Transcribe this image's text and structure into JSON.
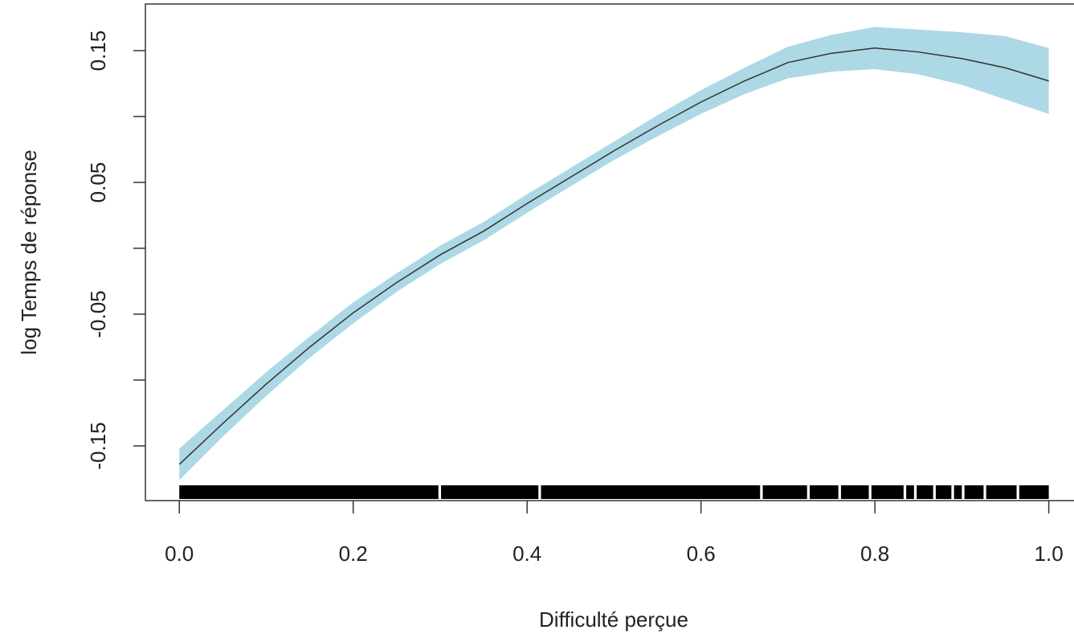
{
  "chart_data": {
    "type": "line",
    "xlabel": "Difficulté perçue",
    "ylabel": "log Temps de réponse",
    "x": [
      0,
      0.05,
      0.1,
      0.15,
      0.2,
      0.25,
      0.3,
      0.35,
      0.4,
      0.45,
      0.5,
      0.55,
      0.6,
      0.65,
      0.7,
      0.75,
      0.8,
      0.85,
      0.9,
      0.95,
      1.0
    ],
    "values": [
      -0.164,
      -0.133,
      -0.103,
      -0.075,
      -0.049,
      -0.026,
      -0.005,
      0.013,
      0.034,
      0.054,
      0.074,
      0.093,
      0.111,
      0.127,
      0.141,
      0.148,
      0.152,
      0.149,
      0.144,
      0.137,
      0.127
    ],
    "lower": [
      -0.176,
      -0.143,
      -0.112,
      -0.083,
      -0.057,
      -0.033,
      -0.012,
      0.006,
      0.027,
      0.047,
      0.067,
      0.085,
      0.102,
      0.117,
      0.129,
      0.134,
      0.136,
      0.132,
      0.124,
      0.113,
      0.102
    ],
    "upper": [
      -0.152,
      -0.123,
      -0.094,
      -0.067,
      -0.041,
      -0.019,
      0.002,
      0.02,
      0.041,
      0.061,
      0.081,
      0.101,
      0.12,
      0.137,
      0.153,
      0.162,
      0.168,
      0.166,
      0.164,
      0.161,
      0.152
    ],
    "line_color": "#333333",
    "band_color": "#add8e6",
    "rug_color": "#000000",
    "rug_segments": [
      [
        0,
        0.298
      ],
      [
        0.301,
        0.413
      ],
      [
        0.416,
        0.668
      ],
      [
        0.671,
        0.722
      ],
      [
        0.725,
        0.758
      ],
      [
        0.761,
        0.793
      ],
      [
        0.796,
        0.833
      ],
      [
        0.836,
        0.845
      ],
      [
        0.848,
        0.867
      ],
      [
        0.87,
        0.888
      ],
      [
        0.891,
        0.9
      ],
      [
        0.903,
        0.925
      ],
      [
        0.928,
        0.963
      ],
      [
        0.966,
        1.0
      ]
    ],
    "xlim": [
      -0.039,
      1.029
    ],
    "ylim": [
      -0.1915,
      0.1854
    ],
    "xticks": [
      {
        "value": 0,
        "label": "0.0"
      },
      0.2,
      0.4,
      0.6,
      0.8,
      {
        "value": 1,
        "label": "1.0"
      }
    ],
    "yticks": [
      -0.15,
      {
        "value": -0.1,
        "label": null
      },
      -0.05,
      {
        "value": 0,
        "label": null
      },
      0.05,
      {
        "value": 0.1,
        "label": null
      },
      0.15
    ]
  }
}
